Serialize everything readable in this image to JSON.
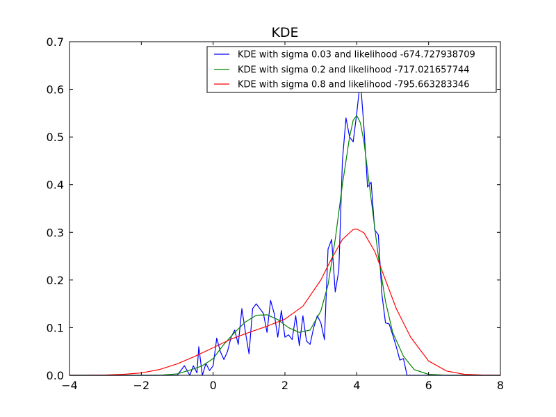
{
  "chart_data": {
    "type": "line",
    "title": "KDE",
    "xlabel": "",
    "ylabel": "",
    "xlim": [
      -4,
      8
    ],
    "ylim": [
      0,
      0.7
    ],
    "x_ticks": [
      -4,
      -2,
      0,
      2,
      4,
      6,
      8
    ],
    "x_tick_labels": [
      "−4",
      "−2",
      "0",
      "2",
      "4",
      "6",
      "8"
    ],
    "y_ticks": [
      0.0,
      0.1,
      0.2,
      0.3,
      0.4,
      0.5,
      0.6,
      0.7
    ],
    "y_tick_labels": [
      "0.0",
      "0.1",
      "0.2",
      "0.3",
      "0.4",
      "0.5",
      "0.6",
      "0.7"
    ],
    "grid": false,
    "legend_position": "upper-right",
    "series": [
      {
        "name": "KDE with sigma 0.03 and likelihood -674.727938709",
        "color": "#0000ff",
        "x": [
          -4.0,
          -1.0,
          -0.8,
          -0.65,
          -0.55,
          -0.45,
          -0.4,
          -0.3,
          -0.2,
          -0.1,
          0.0,
          0.1,
          0.2,
          0.3,
          0.4,
          0.5,
          0.6,
          0.7,
          0.8,
          0.9,
          1.0,
          1.1,
          1.2,
          1.3,
          1.4,
          1.5,
          1.6,
          1.7,
          1.8,
          1.9,
          2.0,
          2.1,
          2.2,
          2.3,
          2.4,
          2.5,
          2.6,
          2.7,
          2.8,
          2.9,
          3.0,
          3.1,
          3.2,
          3.3,
          3.4,
          3.5,
          3.6,
          3.7,
          3.8,
          3.9,
          4.0,
          4.1,
          4.2,
          4.3,
          4.4,
          4.5,
          4.6,
          4.7,
          4.8,
          4.9,
          5.0,
          5.1,
          5.2,
          5.3,
          5.4,
          5.5,
          5.6,
          8.0
        ],
        "y": [
          0.0,
          0.0,
          0.02,
          0.0,
          0.02,
          0.005,
          0.06,
          0.0,
          0.025,
          0.01,
          0.02,
          0.078,
          0.05,
          0.033,
          0.05,
          0.08,
          0.095,
          0.065,
          0.14,
          0.09,
          0.045,
          0.14,
          0.15,
          0.14,
          0.13,
          0.09,
          0.157,
          0.13,
          0.08,
          0.136,
          0.08,
          0.085,
          0.075,
          0.125,
          0.062,
          0.125,
          0.072,
          0.065,
          0.1,
          0.125,
          0.11,
          0.075,
          0.265,
          0.285,
          0.175,
          0.22,
          0.45,
          0.54,
          0.5,
          0.49,
          0.55,
          0.62,
          0.52,
          0.395,
          0.405,
          0.305,
          0.295,
          0.17,
          0.11,
          0.108,
          0.085,
          0.06,
          0.032,
          0.035,
          0.0,
          0.0,
          0.0,
          0.0
        ]
      },
      {
        "name": "KDE with sigma 0.2 and likelihood -717.021657744",
        "color": "#008000",
        "x": [
          -4.0,
          -2.0,
          -1.5,
          -1.0,
          -0.6,
          -0.3,
          0.0,
          0.3,
          0.6,
          0.9,
          1.2,
          1.5,
          1.8,
          2.1,
          2.4,
          2.7,
          3.0,
          3.2,
          3.4,
          3.6,
          3.8,
          3.9,
          4.0,
          4.1,
          4.2,
          4.4,
          4.6,
          4.8,
          5.0,
          5.3,
          5.6,
          6.0,
          6.5,
          8.0
        ],
        "y": [
          0.0,
          0.0,
          0.0,
          0.003,
          0.012,
          0.02,
          0.035,
          0.065,
          0.09,
          0.112,
          0.126,
          0.127,
          0.117,
          0.1,
          0.09,
          0.095,
          0.135,
          0.19,
          0.285,
          0.4,
          0.5,
          0.535,
          0.545,
          0.53,
          0.49,
          0.37,
          0.25,
          0.155,
          0.09,
          0.04,
          0.012,
          0.002,
          0.0,
          0.0
        ]
      },
      {
        "name": "KDE with sigma 0.8 and likelihood -795.663283346",
        "color": "#ff0000",
        "x": [
          -4.0,
          -3.0,
          -2.5,
          -2.0,
          -1.5,
          -1.0,
          -0.5,
          0.0,
          0.5,
          1.0,
          1.5,
          2.0,
          2.5,
          3.0,
          3.3,
          3.6,
          3.9,
          4.0,
          4.2,
          4.5,
          4.8,
          5.1,
          5.5,
          6.0,
          6.5,
          7.0,
          7.5,
          8.0
        ],
        "y": [
          0.0,
          0.0005,
          0.002,
          0.005,
          0.012,
          0.024,
          0.04,
          0.058,
          0.076,
          0.09,
          0.103,
          0.118,
          0.145,
          0.2,
          0.245,
          0.285,
          0.306,
          0.307,
          0.299,
          0.26,
          0.2,
          0.14,
          0.08,
          0.03,
          0.009,
          0.002,
          0.0005,
          0.0
        ]
      }
    ]
  }
}
